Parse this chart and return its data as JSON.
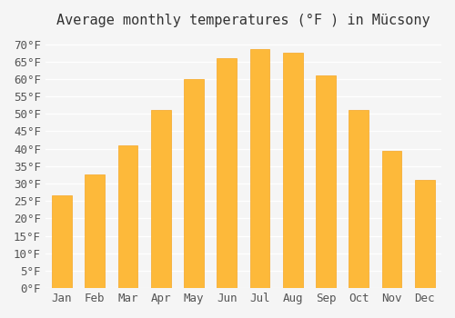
{
  "title": "Average monthly temperatures (°F ) in Mücsony",
  "months": [
    "Jan",
    "Feb",
    "Mar",
    "Apr",
    "May",
    "Jun",
    "Jul",
    "Aug",
    "Sep",
    "Oct",
    "Nov",
    "Dec"
  ],
  "values": [
    26.5,
    32.5,
    41.0,
    51.0,
    60.0,
    66.0,
    68.5,
    67.5,
    61.0,
    51.0,
    39.5,
    31.0
  ],
  "bar_color": "#FDB93A",
  "bar_edge_color": "#F5A623",
  "background_color": "#F5F5F5",
  "grid_color": "#FFFFFF",
  "yticks": [
    0,
    5,
    10,
    15,
    20,
    25,
    30,
    35,
    40,
    45,
    50,
    55,
    60,
    65,
    70
  ],
  "ylabel_suffix": "°F",
  "ylim": [
    0,
    72
  ],
  "title_fontsize": 11,
  "tick_fontsize": 9,
  "font_family": "monospace"
}
